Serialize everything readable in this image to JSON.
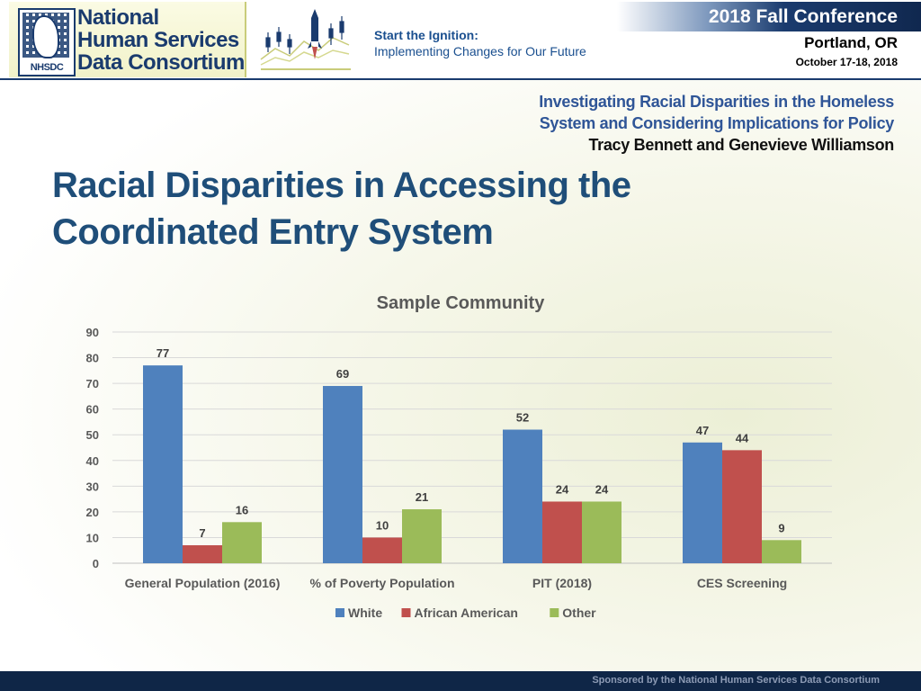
{
  "header": {
    "org_lines": [
      "National",
      "Human Services",
      "Data Consortium"
    ],
    "logo_abbr": "NHSDC",
    "slogan_line1": "Start the Ignition:",
    "slogan_line2": "Implementing Changes for Our Future",
    "conference_title": "2018 Fall Conference",
    "conference_city": "Portland, OR",
    "conference_dates": "October 17-18, 2018"
  },
  "session": {
    "title_line1": "Investigating Racial Disparities in the Homeless",
    "title_line2": "System and Considering Implications for Policy",
    "presenters": "Tracy Bennett and Genevieve Williamson"
  },
  "slide": {
    "title_line1": "Racial Disparities in Accessing the",
    "title_line2": "Coordinated Entry System"
  },
  "footer": {
    "text": "Sponsored by the National Human Services Data Consortium"
  },
  "chart_data": {
    "type": "bar",
    "title": "Sample Community",
    "categories": [
      "General Population (2016)",
      "% of Poverty Population",
      "PIT (2018)",
      "CES Screening"
    ],
    "series": [
      {
        "name": "White",
        "color": "#4f81bd",
        "values": [
          77,
          69,
          52,
          47
        ]
      },
      {
        "name": "African American",
        "color": "#c0504d",
        "values": [
          7,
          10,
          24,
          44
        ]
      },
      {
        "name": "Other",
        "color": "#9bbb59",
        "values": [
          16,
          21,
          24,
          9
        ]
      }
    ],
    "ylim": [
      0,
      90
    ],
    "yticks": [
      0,
      10,
      20,
      30,
      40,
      50,
      60,
      70,
      80,
      90
    ],
    "grid": true,
    "legend": "bottom",
    "xlabel": "",
    "ylabel": ""
  }
}
